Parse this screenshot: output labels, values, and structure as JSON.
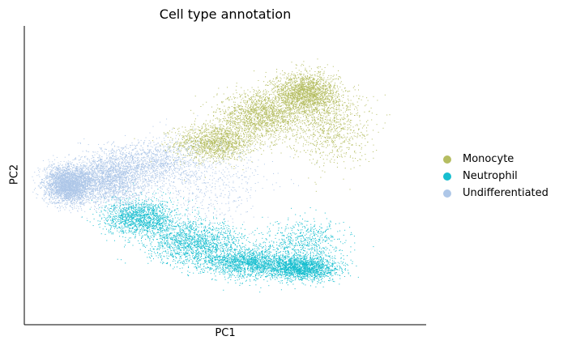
{
  "chart_data": {
    "type": "scatter",
    "title": "Cell type annotation",
    "xlabel": "PC1",
    "ylabel": "PC2",
    "xlim": [
      -1.0,
      1.0
    ],
    "ylim": [
      -1.0,
      1.0
    ],
    "ticks": "none",
    "grid": false,
    "legend_position": "right",
    "series": [
      {
        "name": "Monocyte",
        "color": "#b5bd61",
        "clusters": [
          {
            "cx": -0.05,
            "cy": 0.22,
            "sx": 0.1,
            "sy": 0.06,
            "n": 1400
          },
          {
            "cx": 0.18,
            "cy": 0.4,
            "sx": 0.11,
            "sy": 0.08,
            "n": 1700
          },
          {
            "cx": 0.4,
            "cy": 0.55,
            "sx": 0.08,
            "sy": 0.07,
            "n": 2000
          },
          {
            "cx": 0.52,
            "cy": 0.32,
            "sx": 0.1,
            "sy": 0.12,
            "n": 800
          }
        ]
      },
      {
        "name": "Neutrophil",
        "color": "#17becf",
        "clusters": [
          {
            "cx": -0.42,
            "cy": -0.28,
            "sx": 0.09,
            "sy": 0.06,
            "n": 1500
          },
          {
            "cx": -0.15,
            "cy": -0.45,
            "sx": 0.12,
            "sy": 0.07,
            "n": 1500
          },
          {
            "cx": 0.12,
            "cy": -0.58,
            "sx": 0.12,
            "sy": 0.05,
            "n": 1700
          },
          {
            "cx": 0.38,
            "cy": -0.62,
            "sx": 0.09,
            "sy": 0.04,
            "n": 1800
          },
          {
            "cx": 0.4,
            "cy": -0.45,
            "sx": 0.1,
            "sy": 0.08,
            "n": 600
          }
        ]
      },
      {
        "name": "Undifferentiated",
        "color": "#aec7e8",
        "clusters": [
          {
            "cx": -0.78,
            "cy": -0.06,
            "sx": 0.06,
            "sy": 0.06,
            "n": 3000
          },
          {
            "cx": -0.58,
            "cy": -0.02,
            "sx": 0.09,
            "sy": 0.09,
            "n": 2200
          },
          {
            "cx": -0.35,
            "cy": 0.08,
            "sx": 0.1,
            "sy": 0.08,
            "n": 1000
          },
          {
            "cx": -0.1,
            "cy": -0.05,
            "sx": 0.15,
            "sy": 0.15,
            "n": 600
          }
        ]
      }
    ]
  }
}
